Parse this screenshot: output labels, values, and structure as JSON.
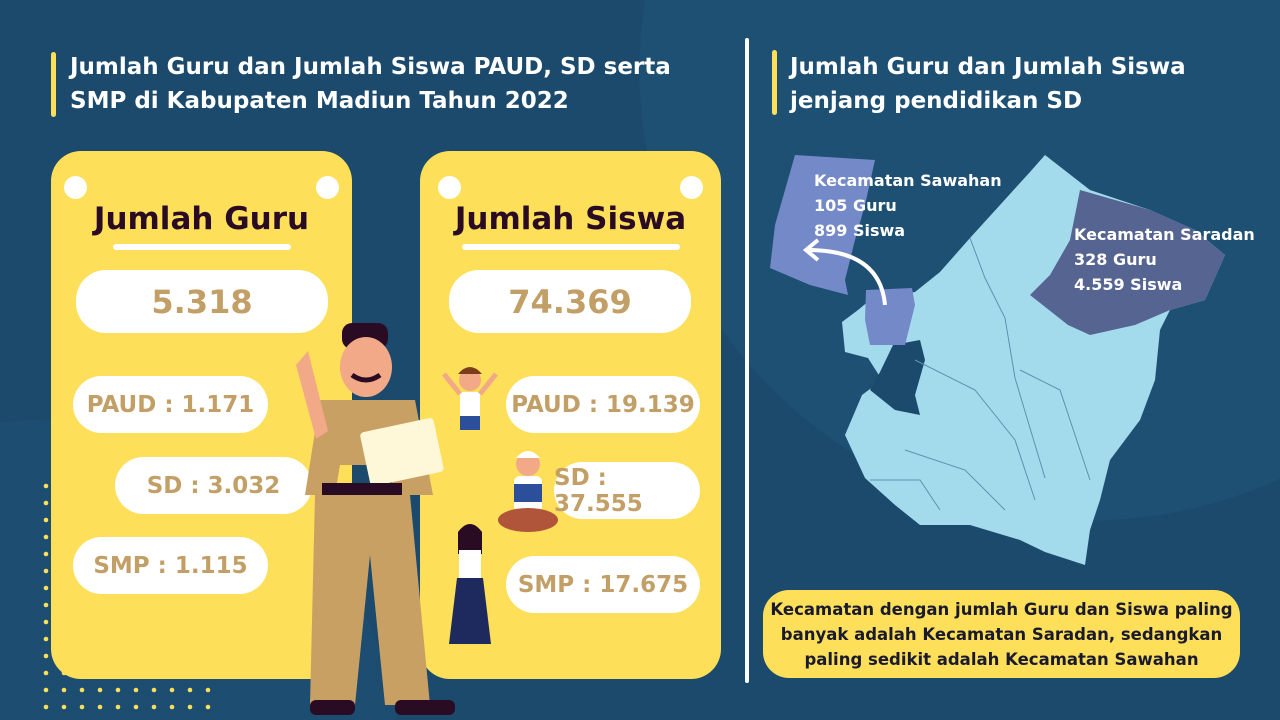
{
  "left_title": "Jumlah Guru dan Jumlah Siswa PAUD, SD serta SMP di Kabupaten Madiun Tahun 2022",
  "right_title": "Jumlah Guru dan Jumlah Siswa jenjang pendidikan SD",
  "guru_card": {
    "title": "Jumlah Guru",
    "total": "5.318",
    "paud": "PAUD : 1.171",
    "sd": "SD : 3.032",
    "smp": "SMP : 1.115"
  },
  "siswa_card": {
    "title": "Jumlah Siswa",
    "total": "74.369",
    "paud": "PAUD : 19.139",
    "sd": "SD : 37.555",
    "smp": "SMP : 17.675"
  },
  "map": {
    "sawahan": {
      "name": "Kecamatan Sawahan",
      "guru": "105 Guru",
      "siswa": "899 Siswa",
      "color": "#7489c8"
    },
    "saradan": {
      "name": "Kecamatan Saradan",
      "guru": "328 Guru",
      "siswa": "4.559 Siswa",
      "color": "#566491"
    },
    "base_color": "#a4dbec"
  },
  "note": "Kecamatan dengan jumlah Guru dan Siswa paling banyak adalah Kecamatan Saradan, sedangkan paling sedikit adalah Kecamatan Sawahan",
  "colors": {
    "background": "#1c4a6c",
    "card": "#fddf5a",
    "value_text": "#c29f66",
    "card_title": "#2a0b24"
  }
}
